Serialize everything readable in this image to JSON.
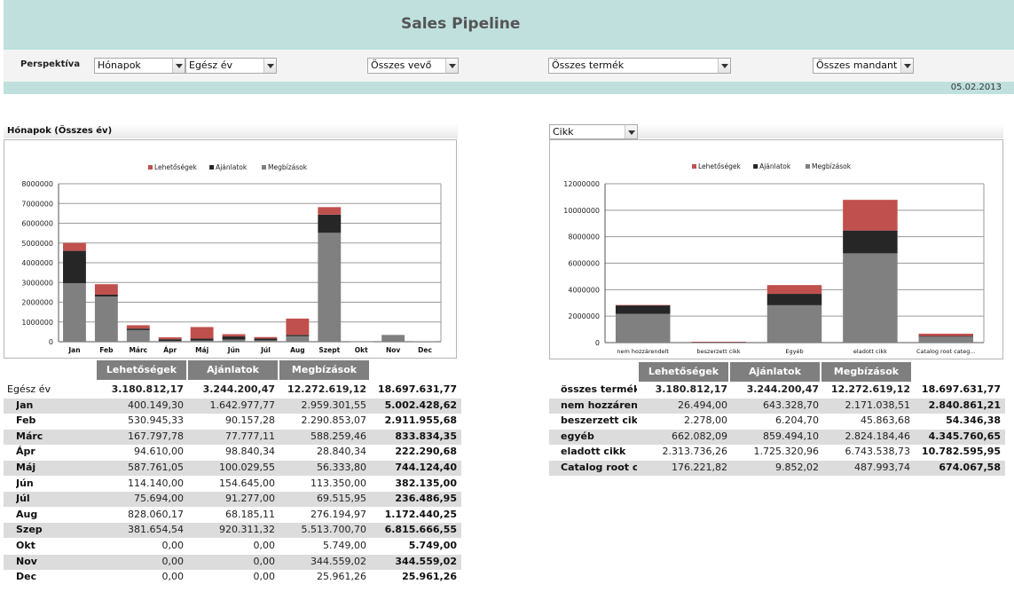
{
  "header": {
    "title": "Sales Pipeline"
  },
  "filters": {
    "label": "Perspektíva",
    "perspective": "Hónapok",
    "period": "Egész év",
    "customer": "Összes vevő",
    "product": "Összes termék",
    "mandant": "Összes mandant"
  },
  "date": "05.02.2013",
  "left_section": {
    "title": "Hónapok (Összes év)"
  },
  "right_section": {
    "selector": "Cikk"
  },
  "colors": {
    "lehetosegek": "#c0504d",
    "ajanlatok": "#262626",
    "megbizasok": "#808080",
    "header_bg": "#bfe0dd",
    "table_header": "#7f7f7f"
  },
  "legend": [
    "Lehetőségek",
    "Ajánlatok",
    "Megbízások"
  ],
  "chart_data": [
    {
      "type": "bar",
      "stacked": true,
      "categories": [
        "Jan",
        "Feb",
        "Márc",
        "Ápr",
        "Máj",
        "Jún",
        "Júl",
        "Aug",
        "Szept",
        "Okt",
        "Nov",
        "Dec"
      ],
      "series": [
        {
          "name": "Megbízások",
          "values": [
            2959301.55,
            2290853.07,
            588259.46,
            28840.34,
            56333.8,
            113350.0,
            69515.95,
            276194.97,
            5513700.7,
            5749.0,
            344559.02,
            25961.26
          ]
        },
        {
          "name": "Ajánlatok",
          "values": [
            1642977.77,
            90157.28,
            77777.11,
            98840.34,
            100029.55,
            154645.0,
            91277.0,
            68185.11,
            920311.32,
            0,
            0,
            0
          ]
        },
        {
          "name": "Lehetőségek",
          "values": [
            400149.3,
            530945.33,
            167797.78,
            94610.0,
            587761.05,
            114140.0,
            75694.0,
            828060.17,
            381654.54,
            0,
            0,
            0
          ]
        }
      ],
      "ylim": [
        0,
        8000000
      ],
      "yticks": [
        "0",
        "1000000",
        "2000000",
        "3000000",
        "4000000",
        "5000000",
        "6000000",
        "7000000",
        "8000000"
      ],
      "grid": true,
      "legend_position": "top"
    },
    {
      "type": "bar",
      "stacked": true,
      "categories": [
        "nem hozzárendelt",
        "beszerzett cikk",
        "Egyéb",
        "eladott cikk",
        "Catalog root categ..."
      ],
      "series": [
        {
          "name": "Megbízások",
          "values": [
            2171038.51,
            45863.68,
            2824184.46,
            6743538.73,
            487993.74
          ]
        },
        {
          "name": "Ajánlatok",
          "values": [
            643328.7,
            6204.7,
            859494.1,
            1725320.96,
            9852.02
          ]
        },
        {
          "name": "Lehetőségek",
          "values": [
            26494.0,
            2278.0,
            662082.09,
            2313736.26,
            176221.82
          ]
        }
      ],
      "ylim": [
        0,
        12000000
      ],
      "yticks": [
        "0",
        "2000000",
        "4000000",
        "6000000",
        "8000000",
        "10000000",
        "12000000"
      ],
      "grid": true,
      "legend_position": "top"
    }
  ],
  "table_headers": [
    "Lehetőségek",
    "Ajánlatok",
    "Megbízások"
  ],
  "left_table": {
    "total": {
      "label": "Egész év",
      "values": [
        "3.180.812,17",
        "3.244.200,47",
        "12.272.619,12"
      ],
      "sum": "18.697.631,77"
    },
    "rows": [
      {
        "label": "Jan",
        "values": [
          "400.149,30",
          "1.642.977,77",
          "2.959.301,55"
        ],
        "sum": "5.002.428,62"
      },
      {
        "label": "Feb",
        "values": [
          "530.945,33",
          "90.157,28",
          "2.290.853,07"
        ],
        "sum": "2.911.955,68"
      },
      {
        "label": "Márc",
        "values": [
          "167.797,78",
          "77.777,11",
          "588.259,46"
        ],
        "sum": "833.834,35"
      },
      {
        "label": "Ápr",
        "values": [
          "94.610,00",
          "98.840,34",
          "28.840,34"
        ],
        "sum": "222.290,68"
      },
      {
        "label": "Máj",
        "values": [
          "587.761,05",
          "100.029,55",
          "56.333,80"
        ],
        "sum": "744.124,40"
      },
      {
        "label": "Jún",
        "values": [
          "114.140,00",
          "154.645,00",
          "113.350,00"
        ],
        "sum": "382.135,00"
      },
      {
        "label": "Júl",
        "values": [
          "75.694,00",
          "91.277,00",
          "69.515,95"
        ],
        "sum": "236.486,95"
      },
      {
        "label": "Aug",
        "values": [
          "828.060,17",
          "68.185,11",
          "276.194,97"
        ],
        "sum": "1.172.440,25"
      },
      {
        "label": "Szep",
        "values": [
          "381.654,54",
          "920.311,32",
          "5.513.700,70"
        ],
        "sum": "6.815.666,55"
      },
      {
        "label": "Okt",
        "values": [
          "0,00",
          "0,00",
          "5.749,00"
        ],
        "sum": "5.749,00"
      },
      {
        "label": "Nov",
        "values": [
          "0,00",
          "0,00",
          "344.559,02"
        ],
        "sum": "344.559,02"
      },
      {
        "label": "Dec",
        "values": [
          "0,00",
          "0,00",
          "25.961,26"
        ],
        "sum": "25.961,26"
      }
    ]
  },
  "right_table": {
    "total": {
      "label": "összes termék",
      "values": [
        "3.180.812,17",
        "3.244.200,47",
        "12.272.619,12"
      ],
      "sum": "18.697.631,77"
    },
    "rows": [
      {
        "label": "nem hozzárendelt",
        "values": [
          "26.494,00",
          "643.328,70",
          "2.171.038,51"
        ],
        "sum": "2.840.861,21"
      },
      {
        "label": "beszerzett cikk",
        "values": [
          "2.278,00",
          "6.204,70",
          "45.863,68"
        ],
        "sum": "54.346,38"
      },
      {
        "label": "egyéb",
        "values": [
          "662.082,09",
          "859.494,10",
          "2.824.184,46"
        ],
        "sum": "4.345.760,65"
      },
      {
        "label": "eladott cikk",
        "values": [
          "2.313.736,26",
          "1.725.320,96",
          "6.743.538,73"
        ],
        "sum": "10.782.595,95"
      },
      {
        "label": "Catalog root categ",
        "values": [
          "176.221,82",
          "9.852,02",
          "487.993,74"
        ],
        "sum": "674.067,58"
      }
    ]
  }
}
